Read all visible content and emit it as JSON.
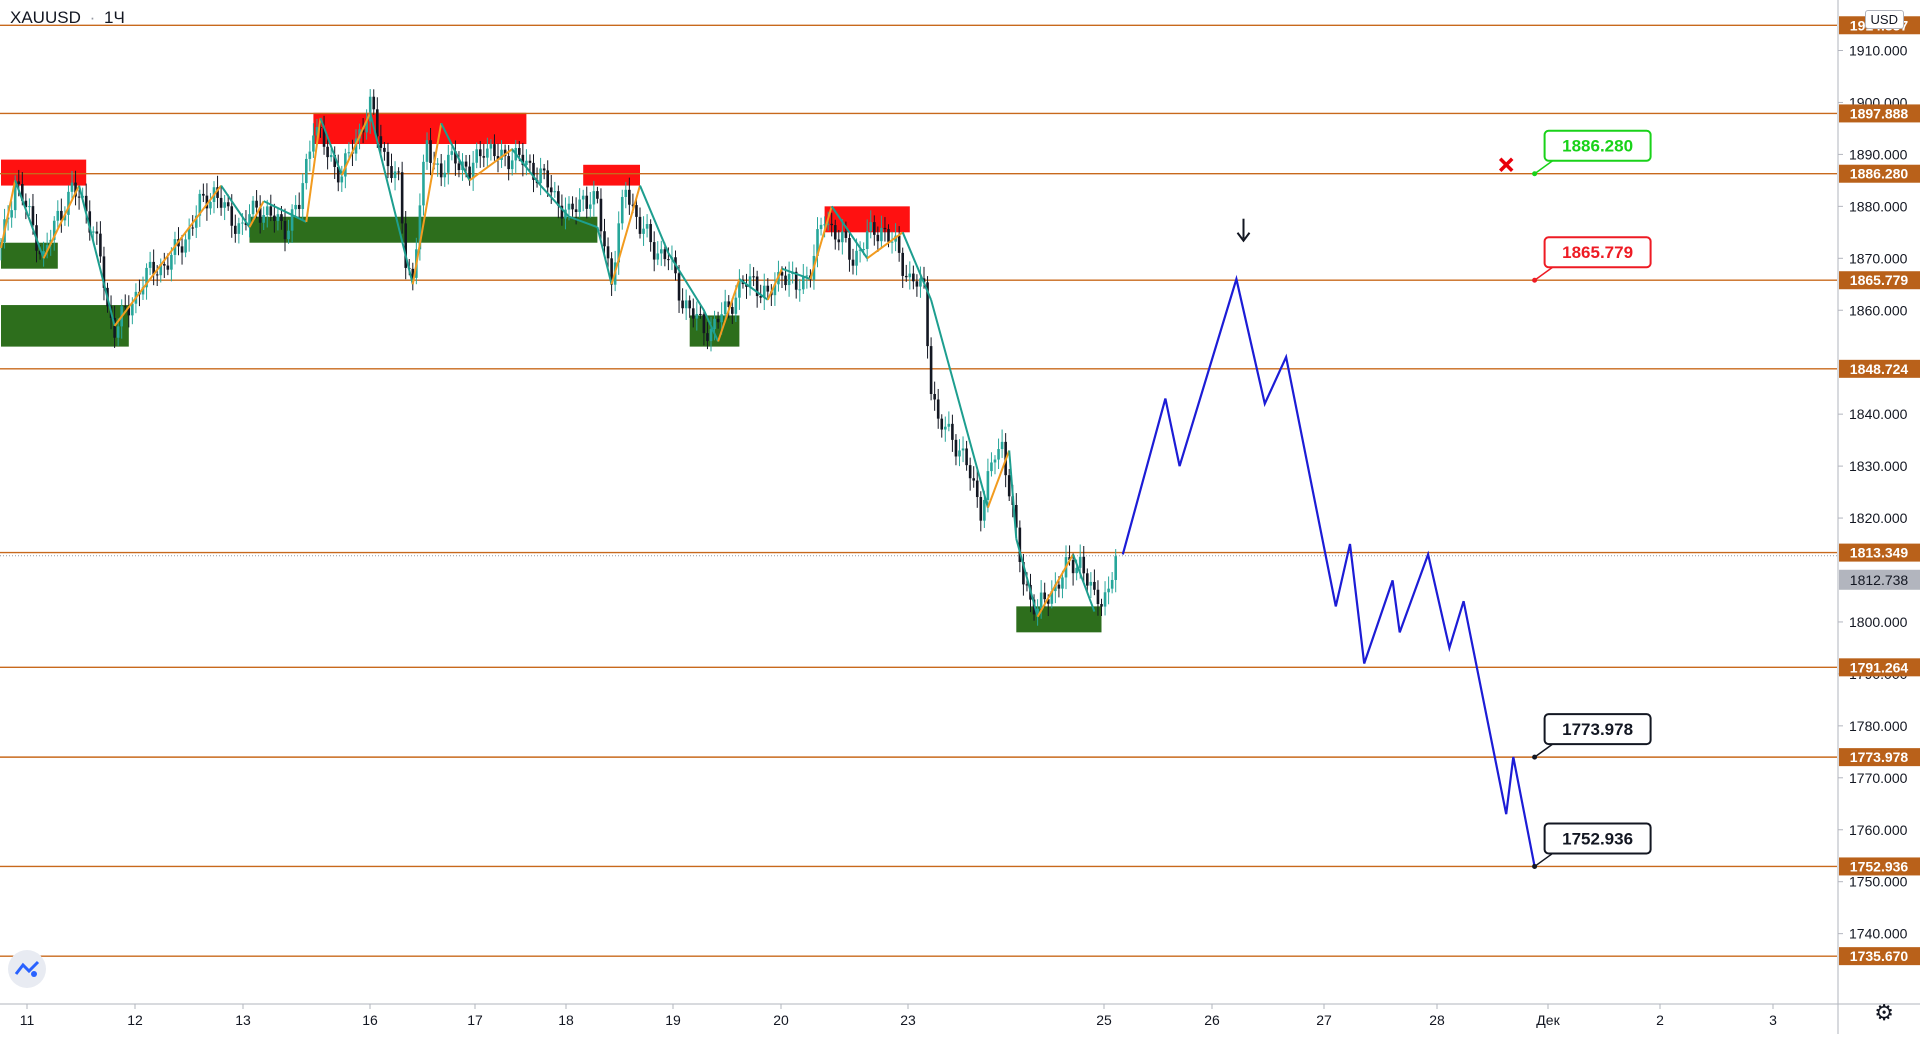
{
  "header": {
    "symbol": "XAUUSD",
    "separator": "·",
    "interval": "1Ч",
    "currency": "USD"
  },
  "icons": {
    "settings": "gear-icon",
    "logo": "tradingview-logo-icon",
    "cross": "cross-icon",
    "arrow": "arrow-down-icon"
  },
  "colors": {
    "level_line": "#c8691c",
    "level_label_bg": "#b9611a",
    "bull_candle": "#26a69a",
    "bear_candle": "#131722",
    "zigzag_up": "#f29b1f",
    "zigzag_down": "#1d9e8f",
    "forecast": "#1c1cd6",
    "supply_zone": "#ff1111",
    "demand_zone": "#2d6e1c",
    "last_price_bg": "#b2b5be",
    "green_callout": "#19d219",
    "red_callout": "#ee1b24"
  },
  "chart_data": {
    "type": "candlestick",
    "symbol": "XAUUSD",
    "interval": "1Ч",
    "y_range": [
      1730,
      1920
    ],
    "x_ticks": [
      "11",
      "12",
      "13",
      "16",
      "17",
      "18",
      "19",
      "20",
      "23",
      "25",
      "26",
      "27",
      "28",
      "Дек",
      "2",
      "3"
    ],
    "y_ticks": [
      "1910.000",
      "1900.000",
      "1890.000",
      "1880.000",
      "1870.000",
      "1860.000",
      "1840.000",
      "1830.000",
      "1820.000",
      "1800.000",
      "1790.000",
      "1780.000",
      "1770.000",
      "1760.000",
      "1750.000",
      "1740.000"
    ],
    "y_tick_values": [
      1910,
      1900,
      1890,
      1880,
      1870,
      1860,
      1840,
      1830,
      1820,
      1800,
      1790,
      1780,
      1770,
      1760,
      1750,
      1740
    ],
    "levels": [
      "1914.857",
      "1897.888",
      "1886.280",
      "1865.779",
      "1848.724",
      "1813.349",
      "1791.264",
      "1773.978",
      "1752.936",
      "1735.670"
    ],
    "level_values": [
      1914.857,
      1897.888,
      1886.28,
      1865.779,
      1848.724,
      1813.349,
      1791.264,
      1773.978,
      1752.936,
      1735.67
    ],
    "last_price": "1812.738",
    "last_price_value": 1812.738,
    "supply_zones": [
      {
        "x0": 0,
        "x1": 12,
        "y0": 1884,
        "y1": 1889
      },
      {
        "x0": 44,
        "x1": 74,
        "y0": 1892,
        "y1": 1898
      },
      {
        "x0": 82,
        "x1": 90,
        "y0": 1884,
        "y1": 1888
      },
      {
        "x0": 116,
        "x1": 128,
        "y0": 1875,
        "y1": 1880
      }
    ],
    "demand_zones": [
      {
        "x0": 0,
        "x1": 8,
        "y0": 1868,
        "y1": 1873
      },
      {
        "x0": 0,
        "x1": 18,
        "y0": 1853,
        "y1": 1861
      },
      {
        "x0": 35,
        "x1": 84,
        "y0": 1873,
        "y1": 1878
      },
      {
        "x0": 97,
        "x1": 104,
        "y0": 1853,
        "y1": 1859
      },
      {
        "x0": 143,
        "x1": 155,
        "y0": 1798,
        "y1": 1803
      }
    ],
    "price_path": [
      [
        0,
        1872
      ],
      [
        2,
        1885
      ],
      [
        4,
        1878
      ],
      [
        6,
        1870
      ],
      [
        8,
        1878
      ],
      [
        10,
        1883
      ],
      [
        12,
        1880
      ],
      [
        14,
        1870
      ],
      [
        15,
        1860
      ],
      [
        16,
        1857
      ],
      [
        18,
        1860
      ],
      [
        20,
        1866
      ],
      [
        22,
        1868
      ],
      [
        24,
        1870
      ],
      [
        26,
        1874
      ],
      [
        28,
        1880
      ],
      [
        30,
        1883
      ],
      [
        32,
        1878
      ],
      [
        34,
        1876
      ],
      [
        36,
        1880
      ],
      [
        38,
        1878
      ],
      [
        40,
        1876
      ],
      [
        42,
        1880
      ],
      [
        44,
        1896
      ],
      [
        46,
        1890
      ],
      [
        48,
        1886
      ],
      [
        50,
        1893
      ],
      [
        52,
        1899
      ],
      [
        54,
        1890
      ],
      [
        56,
        1884
      ],
      [
        57,
        1870
      ],
      [
        58,
        1866
      ],
      [
        59,
        1880
      ],
      [
        60,
        1892
      ],
      [
        62,
        1886
      ],
      [
        64,
        1890
      ],
      [
        66,
        1886
      ],
      [
        68,
        1892
      ],
      [
        70,
        1889
      ],
      [
        72,
        1890
      ],
      [
        74,
        1888
      ],
      [
        76,
        1886
      ],
      [
        78,
        1882
      ],
      [
        80,
        1878
      ],
      [
        82,
        1882
      ],
      [
        84,
        1880
      ],
      [
        86,
        1866
      ],
      [
        88,
        1884
      ],
      [
        90,
        1876
      ],
      [
        92,
        1872
      ],
      [
        94,
        1870
      ],
      [
        96,
        1862
      ],
      [
        98,
        1858
      ],
      [
        100,
        1856
      ],
      [
        102,
        1860
      ],
      [
        104,
        1864
      ],
      [
        106,
        1866
      ],
      [
        108,
        1862
      ],
      [
        110,
        1868
      ],
      [
        112,
        1864
      ],
      [
        114,
        1868
      ],
      [
        116,
        1878
      ],
      [
        118,
        1874
      ],
      [
        120,
        1870
      ],
      [
        122,
        1874
      ],
      [
        124,
        1876
      ],
      [
        126,
        1872
      ],
      [
        128,
        1866
      ],
      [
        130,
        1864
      ],
      [
        131,
        1846
      ],
      [
        132,
        1838
      ],
      [
        134,
        1836
      ],
      [
        136,
        1830
      ],
      [
        138,
        1822
      ],
      [
        140,
        1832
      ],
      [
        141,
        1834
      ],
      [
        142,
        1826
      ],
      [
        143,
        1816
      ],
      [
        144,
        1808
      ],
      [
        146,
        1802
      ],
      [
        148,
        1806
      ],
      [
        150,
        1810
      ],
      [
        152,
        1812
      ],
      [
        154,
        1804
      ],
      [
        156,
        1806
      ],
      [
        157,
        1812
      ]
    ],
    "zigzag": [
      [
        0,
        1872
      ],
      [
        2,
        1885
      ],
      [
        6,
        1870
      ],
      [
        11,
        1884
      ],
      [
        16,
        1857
      ],
      [
        31,
        1884
      ],
      [
        35,
        1876
      ],
      [
        37,
        1881
      ],
      [
        43,
        1877
      ],
      [
        45,
        1897
      ],
      [
        48,
        1886
      ],
      [
        52,
        1898
      ],
      [
        58,
        1865
      ],
      [
        62,
        1896
      ],
      [
        66,
        1885
      ],
      [
        72,
        1891
      ],
      [
        76,
        1884
      ],
      [
        80,
        1878
      ],
      [
        84,
        1876
      ],
      [
        86,
        1865
      ],
      [
        90,
        1884
      ],
      [
        94,
        1871
      ],
      [
        99,
        1860
      ],
      [
        101,
        1854
      ],
      [
        104,
        1866
      ],
      [
        108,
        1862
      ],
      [
        110,
        1868
      ],
      [
        114,
        1866
      ],
      [
        117,
        1880
      ],
      [
        122,
        1870
      ],
      [
        127,
        1875
      ],
      [
        131,
        1862
      ],
      [
        139,
        1822
      ],
      [
        142,
        1833
      ],
      [
        143,
        1816
      ],
      [
        146,
        1801
      ],
      [
        151,
        1813
      ],
      [
        154,
        1802
      ]
    ],
    "forecast": [
      [
        158,
        1813
      ],
      [
        164,
        1843
      ],
      [
        166,
        1830
      ],
      [
        174,
        1866
      ],
      [
        178,
        1842
      ],
      [
        181,
        1851
      ],
      [
        188,
        1803
      ],
      [
        190,
        1815
      ],
      [
        192,
        1792
      ],
      [
        196,
        1808
      ],
      [
        197,
        1798
      ],
      [
        201,
        1813
      ],
      [
        204,
        1795
      ],
      [
        206,
        1804
      ],
      [
        212,
        1763
      ],
      [
        213,
        1774
      ],
      [
        216,
        1752.936
      ]
    ],
    "callouts": [
      {
        "text": "1886.280",
        "x": 216,
        "y": 1886.28,
        "kind": "green"
      },
      {
        "text": "1865.779",
        "x": 216,
        "y": 1865.779,
        "kind": "red"
      },
      {
        "text": "1773.978",
        "x": 216,
        "y": 1773.978,
        "kind": "black"
      },
      {
        "text": "1752.936",
        "x": 216,
        "y": 1752.936,
        "kind": "black"
      }
    ],
    "markers": [
      {
        "type": "cross",
        "x": 212,
        "y": 1888
      },
      {
        "type": "arrow-down",
        "x": 175,
        "y": 1873
      }
    ]
  }
}
